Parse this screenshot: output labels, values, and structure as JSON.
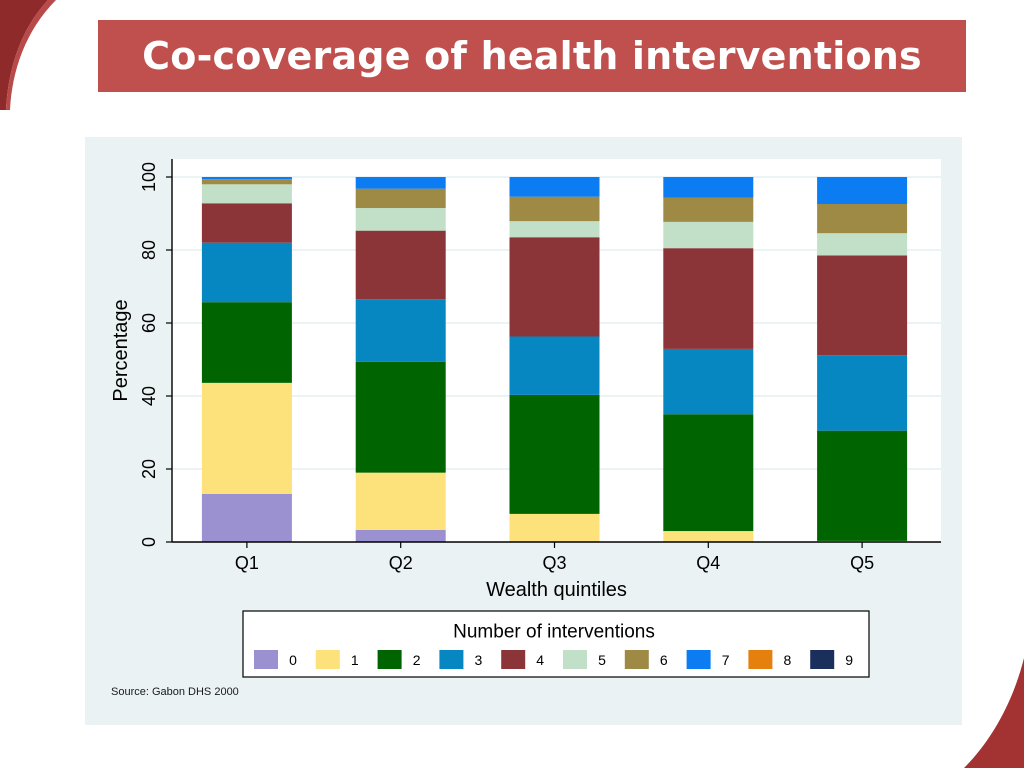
{
  "slide": {
    "title": "Co-coverage of health interventions",
    "accent_color": "#c0504d"
  },
  "source_note": "Source: Gabon DHS 2000",
  "chart_data": {
    "type": "bar",
    "stacked": true,
    "categories": [
      "Q1",
      "Q2",
      "Q3",
      "Q4",
      "Q5"
    ],
    "xlabel": "Wealth quintiles",
    "ylabel": "Percentage",
    "ylim": [
      0,
      100
    ],
    "yticks": [
      "0",
      "20",
      "40",
      "60",
      "80",
      "100"
    ],
    "grid": true,
    "legend": {
      "title": "Number of interventions",
      "placement": "bottom"
    },
    "series": [
      {
        "name": "0",
        "color": "#9b91d0",
        "values": [
          13.2,
          3.3,
          0.0,
          0.0,
          0.0
        ]
      },
      {
        "name": "1",
        "color": "#fde17a",
        "values": [
          30.4,
          15.7,
          7.7,
          3.0,
          0.3
        ]
      },
      {
        "name": "2",
        "color": "#006400",
        "values": [
          22.1,
          30.4,
          32.6,
          32.0,
          30.2
        ]
      },
      {
        "name": "3",
        "color": "#0787c1",
        "values": [
          16.3,
          17.1,
          16.0,
          17.9,
          20.7
        ]
      },
      {
        "name": "4",
        "color": "#8c3539",
        "values": [
          10.8,
          18.8,
          27.2,
          27.6,
          27.3
        ]
      },
      {
        "name": "5",
        "color": "#c1e0c7",
        "values": [
          5.2,
          6.2,
          4.4,
          7.2,
          6.1
        ]
      },
      {
        "name": "6",
        "color": "#9e8a45",
        "values": [
          1.4,
          5.3,
          6.7,
          6.6,
          8.0
        ]
      },
      {
        "name": "7",
        "color": "#0b7cf2",
        "values": [
          0.6,
          3.2,
          5.4,
          5.7,
          7.4
        ]
      },
      {
        "name": "8",
        "color": "#e5800f",
        "values": [
          0.0,
          0.0,
          0.0,
          0.0,
          0.0
        ]
      },
      {
        "name": "9",
        "color": "#1b2f5c",
        "values": [
          0.0,
          0.0,
          0.0,
          0.0,
          0.0
        ]
      }
    ]
  }
}
